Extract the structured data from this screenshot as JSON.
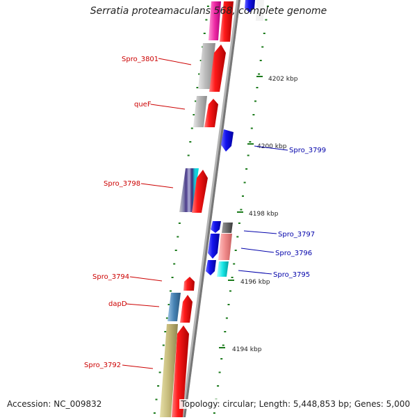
{
  "title": "Serratia proteamaculans 568, complete genome",
  "footer": {
    "accession": "Accession: NC_009832",
    "topology": "Topology: circular; Length: 5,448,853 bp; Genes: 5,000"
  },
  "colors": {
    "forward_label": "#cc0000",
    "reverse_label": "#0000aa",
    "tick": "#1a7a1a",
    "backbone": "#888888"
  },
  "ticks": [
    "4202 kbp",
    "4200 kbp",
    "4198 kbp",
    "4196 kbp",
    "4194 kbp"
  ],
  "forward_labels": [
    "Spro_3801",
    "queF",
    "Spro_3798",
    "Spro_3794",
    "dapD",
    "Spro_3792"
  ],
  "reverse_labels": [
    "Spro_3799",
    "Spro_3797",
    "Spro_3796",
    "Spro_3795"
  ]
}
